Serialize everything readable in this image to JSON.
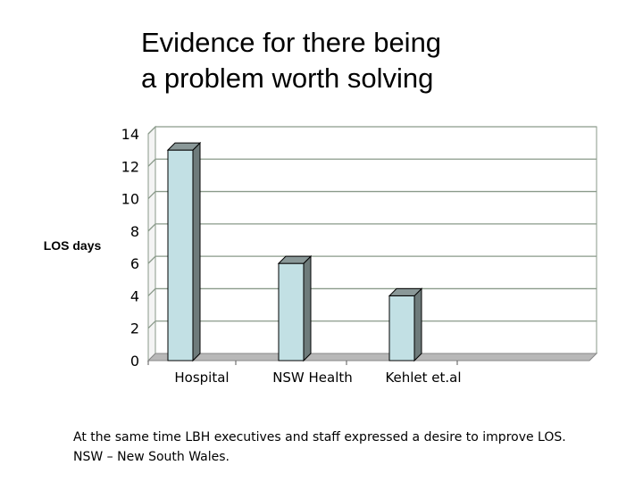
{
  "slide": {
    "title_lines": [
      "Evidence for there being",
      "a problem worth solving"
    ],
    "footnote_lines": [
      "At the same time LBH executives and staff expressed a desire to improve LOS.",
      "NSW – New South Wales."
    ]
  },
  "chart_data": {
    "type": "bar",
    "categories": [
      "Hospital",
      "NSW Health",
      "Kehlet et.al"
    ],
    "values": [
      13,
      6,
      4
    ],
    "title": "",
    "xlabel": "",
    "ylabel": "LOS days",
    "ylim": [
      0,
      14
    ],
    "yticks": [
      "0",
      "2",
      "4",
      "6",
      "8",
      "10",
      "12",
      "14"
    ],
    "grid": true,
    "legend": "none",
    "style": "3d-column",
    "colors": {
      "bar_front": "#c2e0e4",
      "bar_side": "#6e7b7b",
      "bar_top": "#8a9898",
      "bar_edge": "#000000",
      "wall": "#ffffff",
      "wall_edge": "#8a9a8a",
      "gridline": "#8a9a8a",
      "floor": "#b8b8b8"
    }
  }
}
